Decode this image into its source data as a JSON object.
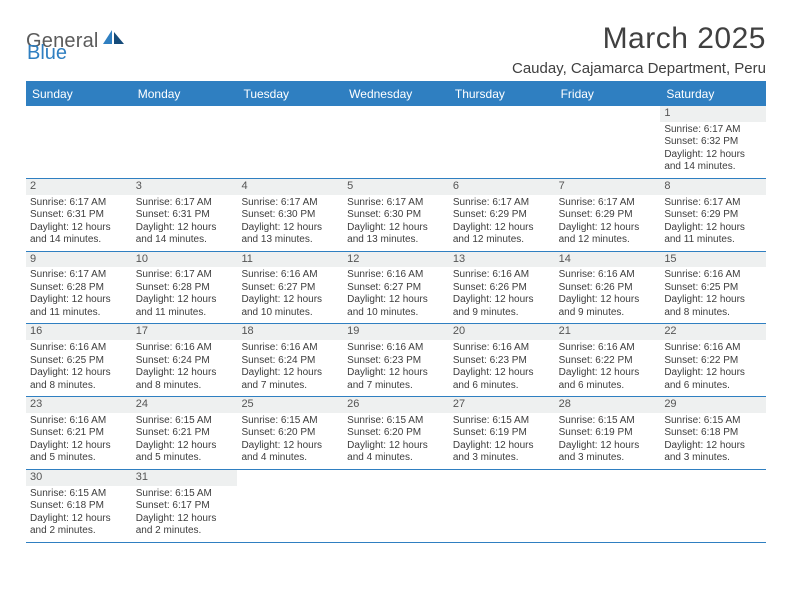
{
  "logo": {
    "general": "General",
    "blue": "Blue"
  },
  "title": "March 2025",
  "location": "Cauday, Cajamarca Department, Peru",
  "colors": {
    "primary": "#2f7fc1",
    "header_bg": "#2f7fc1",
    "daynum_bg": "#eef0f0",
    "text": "#404040"
  },
  "weekdays": [
    "Sunday",
    "Monday",
    "Tuesday",
    "Wednesday",
    "Thursday",
    "Friday",
    "Saturday"
  ],
  "weeks": [
    [
      null,
      null,
      null,
      null,
      null,
      null,
      {
        "n": "1",
        "sr": "Sunrise: 6:17 AM",
        "ss": "Sunset: 6:32 PM",
        "dl": "Daylight: 12 hours and 14 minutes."
      }
    ],
    [
      {
        "n": "2",
        "sr": "Sunrise: 6:17 AM",
        "ss": "Sunset: 6:31 PM",
        "dl": "Daylight: 12 hours and 14 minutes."
      },
      {
        "n": "3",
        "sr": "Sunrise: 6:17 AM",
        "ss": "Sunset: 6:31 PM",
        "dl": "Daylight: 12 hours and 14 minutes."
      },
      {
        "n": "4",
        "sr": "Sunrise: 6:17 AM",
        "ss": "Sunset: 6:30 PM",
        "dl": "Daylight: 12 hours and 13 minutes."
      },
      {
        "n": "5",
        "sr": "Sunrise: 6:17 AM",
        "ss": "Sunset: 6:30 PM",
        "dl": "Daylight: 12 hours and 13 minutes."
      },
      {
        "n": "6",
        "sr": "Sunrise: 6:17 AM",
        "ss": "Sunset: 6:29 PM",
        "dl": "Daylight: 12 hours and 12 minutes."
      },
      {
        "n": "7",
        "sr": "Sunrise: 6:17 AM",
        "ss": "Sunset: 6:29 PM",
        "dl": "Daylight: 12 hours and 12 minutes."
      },
      {
        "n": "8",
        "sr": "Sunrise: 6:17 AM",
        "ss": "Sunset: 6:29 PM",
        "dl": "Daylight: 12 hours and 11 minutes."
      }
    ],
    [
      {
        "n": "9",
        "sr": "Sunrise: 6:17 AM",
        "ss": "Sunset: 6:28 PM",
        "dl": "Daylight: 12 hours and 11 minutes."
      },
      {
        "n": "10",
        "sr": "Sunrise: 6:17 AM",
        "ss": "Sunset: 6:28 PM",
        "dl": "Daylight: 12 hours and 11 minutes."
      },
      {
        "n": "11",
        "sr": "Sunrise: 6:16 AM",
        "ss": "Sunset: 6:27 PM",
        "dl": "Daylight: 12 hours and 10 minutes."
      },
      {
        "n": "12",
        "sr": "Sunrise: 6:16 AM",
        "ss": "Sunset: 6:27 PM",
        "dl": "Daylight: 12 hours and 10 minutes."
      },
      {
        "n": "13",
        "sr": "Sunrise: 6:16 AM",
        "ss": "Sunset: 6:26 PM",
        "dl": "Daylight: 12 hours and 9 minutes."
      },
      {
        "n": "14",
        "sr": "Sunrise: 6:16 AM",
        "ss": "Sunset: 6:26 PM",
        "dl": "Daylight: 12 hours and 9 minutes."
      },
      {
        "n": "15",
        "sr": "Sunrise: 6:16 AM",
        "ss": "Sunset: 6:25 PM",
        "dl": "Daylight: 12 hours and 8 minutes."
      }
    ],
    [
      {
        "n": "16",
        "sr": "Sunrise: 6:16 AM",
        "ss": "Sunset: 6:25 PM",
        "dl": "Daylight: 12 hours and 8 minutes."
      },
      {
        "n": "17",
        "sr": "Sunrise: 6:16 AM",
        "ss": "Sunset: 6:24 PM",
        "dl": "Daylight: 12 hours and 8 minutes."
      },
      {
        "n": "18",
        "sr": "Sunrise: 6:16 AM",
        "ss": "Sunset: 6:24 PM",
        "dl": "Daylight: 12 hours and 7 minutes."
      },
      {
        "n": "19",
        "sr": "Sunrise: 6:16 AM",
        "ss": "Sunset: 6:23 PM",
        "dl": "Daylight: 12 hours and 7 minutes."
      },
      {
        "n": "20",
        "sr": "Sunrise: 6:16 AM",
        "ss": "Sunset: 6:23 PM",
        "dl": "Daylight: 12 hours and 6 minutes."
      },
      {
        "n": "21",
        "sr": "Sunrise: 6:16 AM",
        "ss": "Sunset: 6:22 PM",
        "dl": "Daylight: 12 hours and 6 minutes."
      },
      {
        "n": "22",
        "sr": "Sunrise: 6:16 AM",
        "ss": "Sunset: 6:22 PM",
        "dl": "Daylight: 12 hours and 6 minutes."
      }
    ],
    [
      {
        "n": "23",
        "sr": "Sunrise: 6:16 AM",
        "ss": "Sunset: 6:21 PM",
        "dl": "Daylight: 12 hours and 5 minutes."
      },
      {
        "n": "24",
        "sr": "Sunrise: 6:15 AM",
        "ss": "Sunset: 6:21 PM",
        "dl": "Daylight: 12 hours and 5 minutes."
      },
      {
        "n": "25",
        "sr": "Sunrise: 6:15 AM",
        "ss": "Sunset: 6:20 PM",
        "dl": "Daylight: 12 hours and 4 minutes."
      },
      {
        "n": "26",
        "sr": "Sunrise: 6:15 AM",
        "ss": "Sunset: 6:20 PM",
        "dl": "Daylight: 12 hours and 4 minutes."
      },
      {
        "n": "27",
        "sr": "Sunrise: 6:15 AM",
        "ss": "Sunset: 6:19 PM",
        "dl": "Daylight: 12 hours and 3 minutes."
      },
      {
        "n": "28",
        "sr": "Sunrise: 6:15 AM",
        "ss": "Sunset: 6:19 PM",
        "dl": "Daylight: 12 hours and 3 minutes."
      },
      {
        "n": "29",
        "sr": "Sunrise: 6:15 AM",
        "ss": "Sunset: 6:18 PM",
        "dl": "Daylight: 12 hours and 3 minutes."
      }
    ],
    [
      {
        "n": "30",
        "sr": "Sunrise: 6:15 AM",
        "ss": "Sunset: 6:18 PM",
        "dl": "Daylight: 12 hours and 2 minutes."
      },
      {
        "n": "31",
        "sr": "Sunrise: 6:15 AM",
        "ss": "Sunset: 6:17 PM",
        "dl": "Daylight: 12 hours and 2 minutes."
      },
      null,
      null,
      null,
      null,
      null
    ]
  ]
}
